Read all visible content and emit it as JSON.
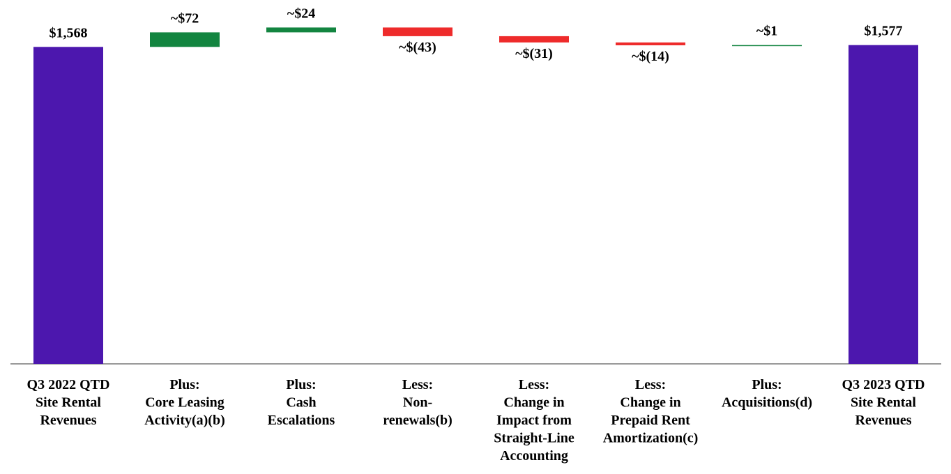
{
  "chart_data": {
    "type": "waterfall",
    "categories": [
      [
        "Q3 2022 QTD",
        "Site Rental",
        "Revenues"
      ],
      [
        "Plus:",
        "Core Leasing",
        "Activity(a)(b)"
      ],
      [
        "Plus:",
        "Cash",
        "Escalations"
      ],
      [
        "Less:",
        "Non-",
        "renewals(b)"
      ],
      [
        "Less:",
        "Change in",
        "Impact from",
        "Straight-Line",
        "Accounting"
      ],
      [
        "Less:",
        "Change in",
        "Prepaid Rent",
        "Amortization(c)"
      ],
      [
        "Plus:",
        "Acquisitions(d)"
      ],
      [
        "Q3 2023 QTD",
        "Site Rental",
        "Revenues"
      ]
    ],
    "values": [
      1568,
      72,
      24,
      -43,
      -31,
      -14,
      1,
      1577
    ],
    "value_labels": [
      "$1,568",
      "~$72",
      "~$24",
      "~$(43)",
      "~$(31)",
      "~$(14)",
      "~$1",
      "$1,577"
    ],
    "is_total": [
      true,
      false,
      false,
      false,
      false,
      false,
      false,
      true
    ],
    "colors": {
      "total": "#4c17ae",
      "increase": "#138540",
      "decrease": "#ee2b2b"
    },
    "ylim": [
      0,
      1800
    ]
  }
}
